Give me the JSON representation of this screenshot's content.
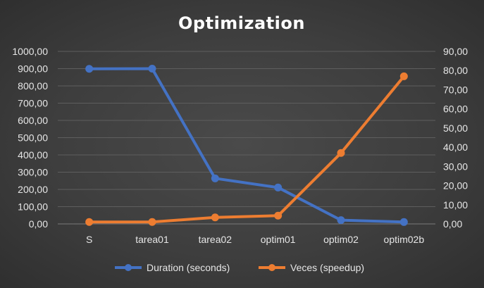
{
  "chart_data": {
    "type": "line",
    "title": "Optimization",
    "categories": [
      "S",
      "tarea01",
      "tarea02",
      "optim01",
      "optim02",
      "optim02b"
    ],
    "series": [
      {
        "name": "Duration (seconds)",
        "axis": "left",
        "color": "#4472c4",
        "values": [
          899,
          900,
          264,
          211,
          22,
          11
        ]
      },
      {
        "name": "Veces (speedup)",
        "axis": "right",
        "color": "#ed7d31",
        "values": [
          1,
          1,
          3.4,
          4.3,
          37,
          77
        ]
      }
    ],
    "y_left": {
      "ylim": [
        0,
        1000
      ],
      "ticks": [
        "0,00",
        "100,00",
        "200,00",
        "300,00",
        "400,00",
        "500,00",
        "600,00",
        "700,00",
        "800,00",
        "900,00",
        "1000,00"
      ]
    },
    "y_right": {
      "ylim": [
        0,
        90
      ],
      "ticks": [
        "0,00",
        "10,00",
        "20,00",
        "30,00",
        "40,00",
        "50,00",
        "60,00",
        "70,00",
        "80,00",
        "90,00"
      ]
    },
    "grid": true,
    "legend_position": "bottom"
  }
}
